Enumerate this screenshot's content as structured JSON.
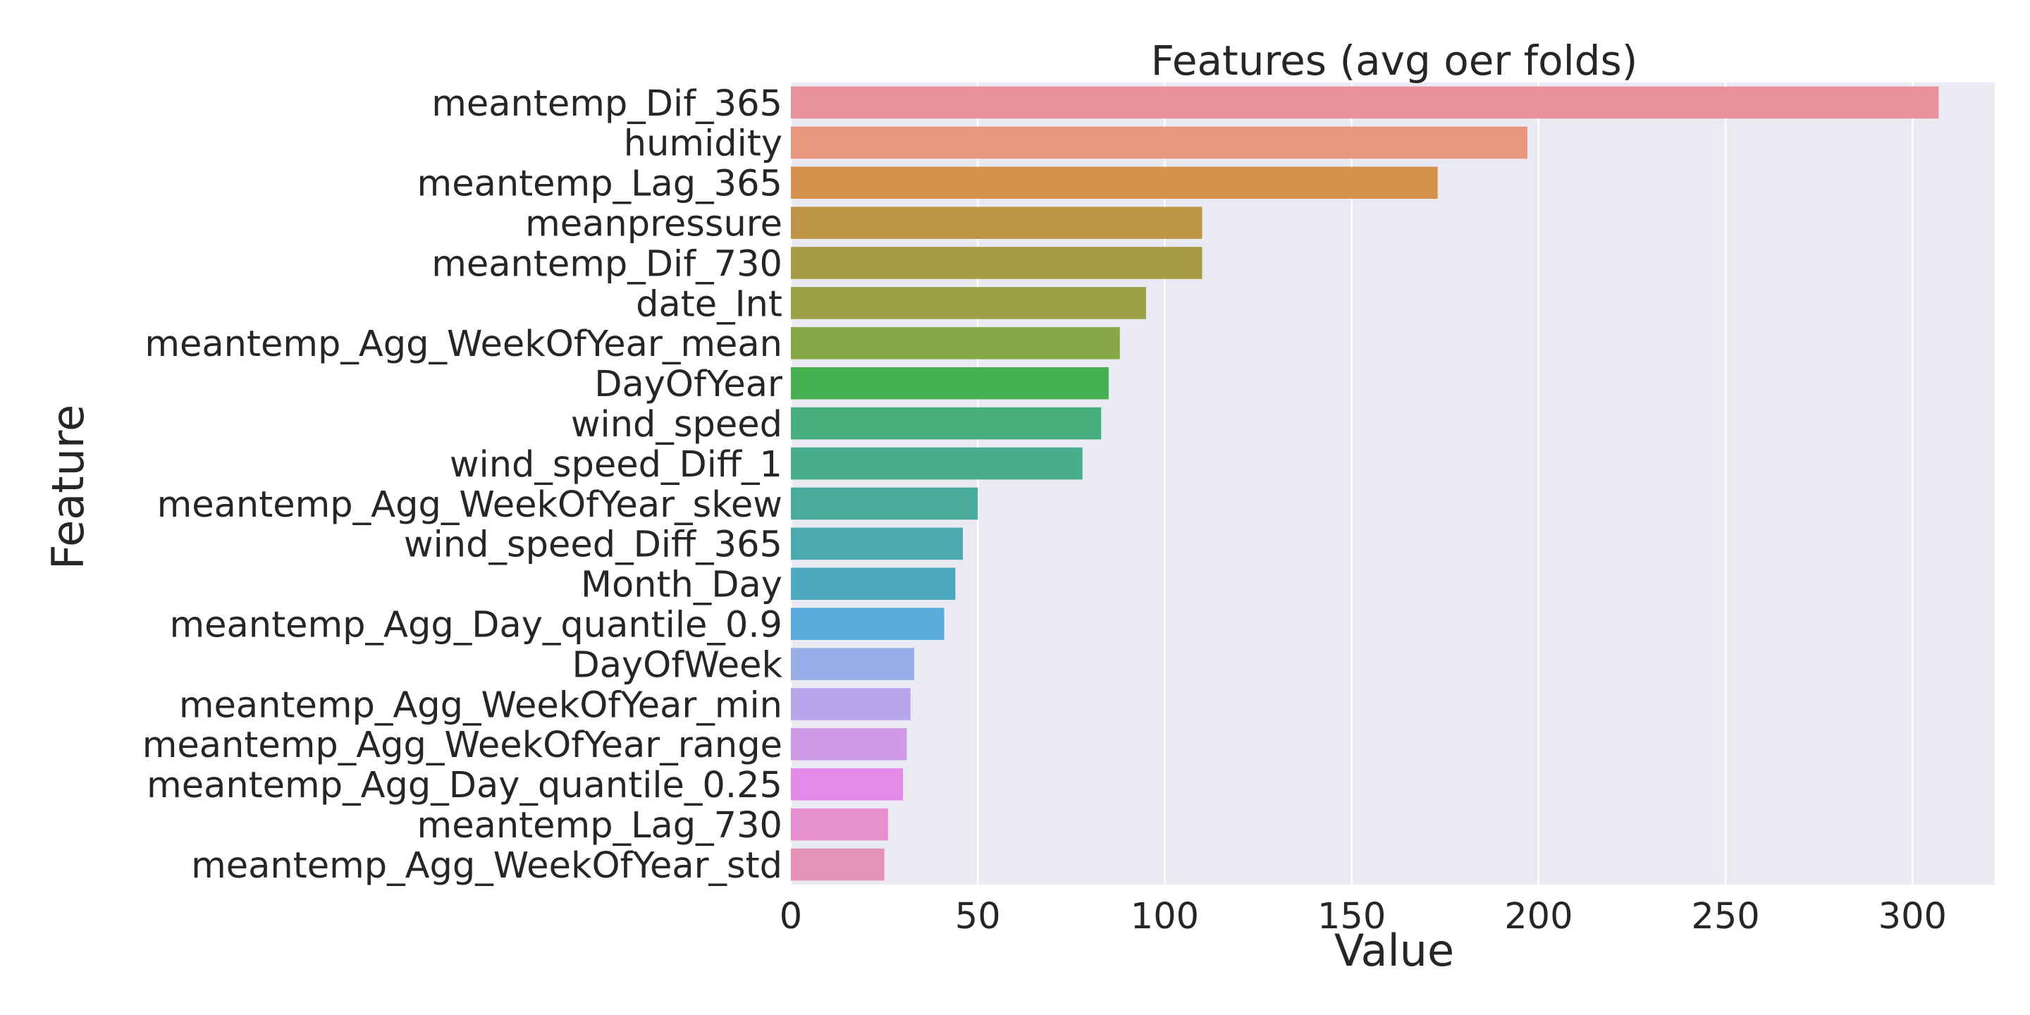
{
  "chart_data": {
    "type": "bar",
    "orientation": "horizontal",
    "title": "Features (avg oer folds)",
    "xlabel": "Value",
    "ylabel": "Feature",
    "xlim": [
      0,
      322
    ],
    "xticks": [
      0,
      50,
      100,
      150,
      200,
      250,
      300
    ],
    "grid": true,
    "legend": "none",
    "categories": [
      "meantemp_Dif_365",
      "humidity",
      "meantemp_Lag_365",
      "meanpressure",
      "meantemp_Dif_730",
      "date_Int",
      "meantemp_Agg_WeekOfYear_mean",
      "DayOfYear",
      "wind_speed",
      "wind_speed_Diff_1",
      "meantemp_Agg_WeekOfYear_skew",
      "wind_speed_Diff_365",
      "Month_Day",
      "meantemp_Agg_Day_quantile_0.9",
      "DayOfWeek",
      "meantemp_Agg_WeekOfYear_min",
      "meantemp_Agg_WeekOfYear_range",
      "meantemp_Agg_Day_quantile_0.25",
      "meantemp_Lag_730",
      "meantemp_Agg_WeekOfYear_std"
    ],
    "values": [
      307,
      197,
      173,
      110,
      110,
      95,
      88,
      85,
      83,
      78,
      50,
      46,
      44,
      41,
      33,
      32,
      31,
      30,
      26,
      25
    ],
    "colors": [
      "#e8919b",
      "#e8967e",
      "#d6924d",
      "#bd9547",
      "#a79b46",
      "#9ba146",
      "#86a745",
      "#45b04f",
      "#48ae7e",
      "#48ad8c",
      "#4aab9d",
      "#4aaaad",
      "#4da9bd",
      "#59abdc",
      "#97aee8",
      "#b7a6ea",
      "#cf9ae8",
      "#e38ae8",
      "#e690cf",
      "#e592b8"
    ],
    "style": {
      "plot_bg": "#eaeaf2",
      "grid_color": "#ffffff",
      "text_color": "#262626"
    }
  }
}
